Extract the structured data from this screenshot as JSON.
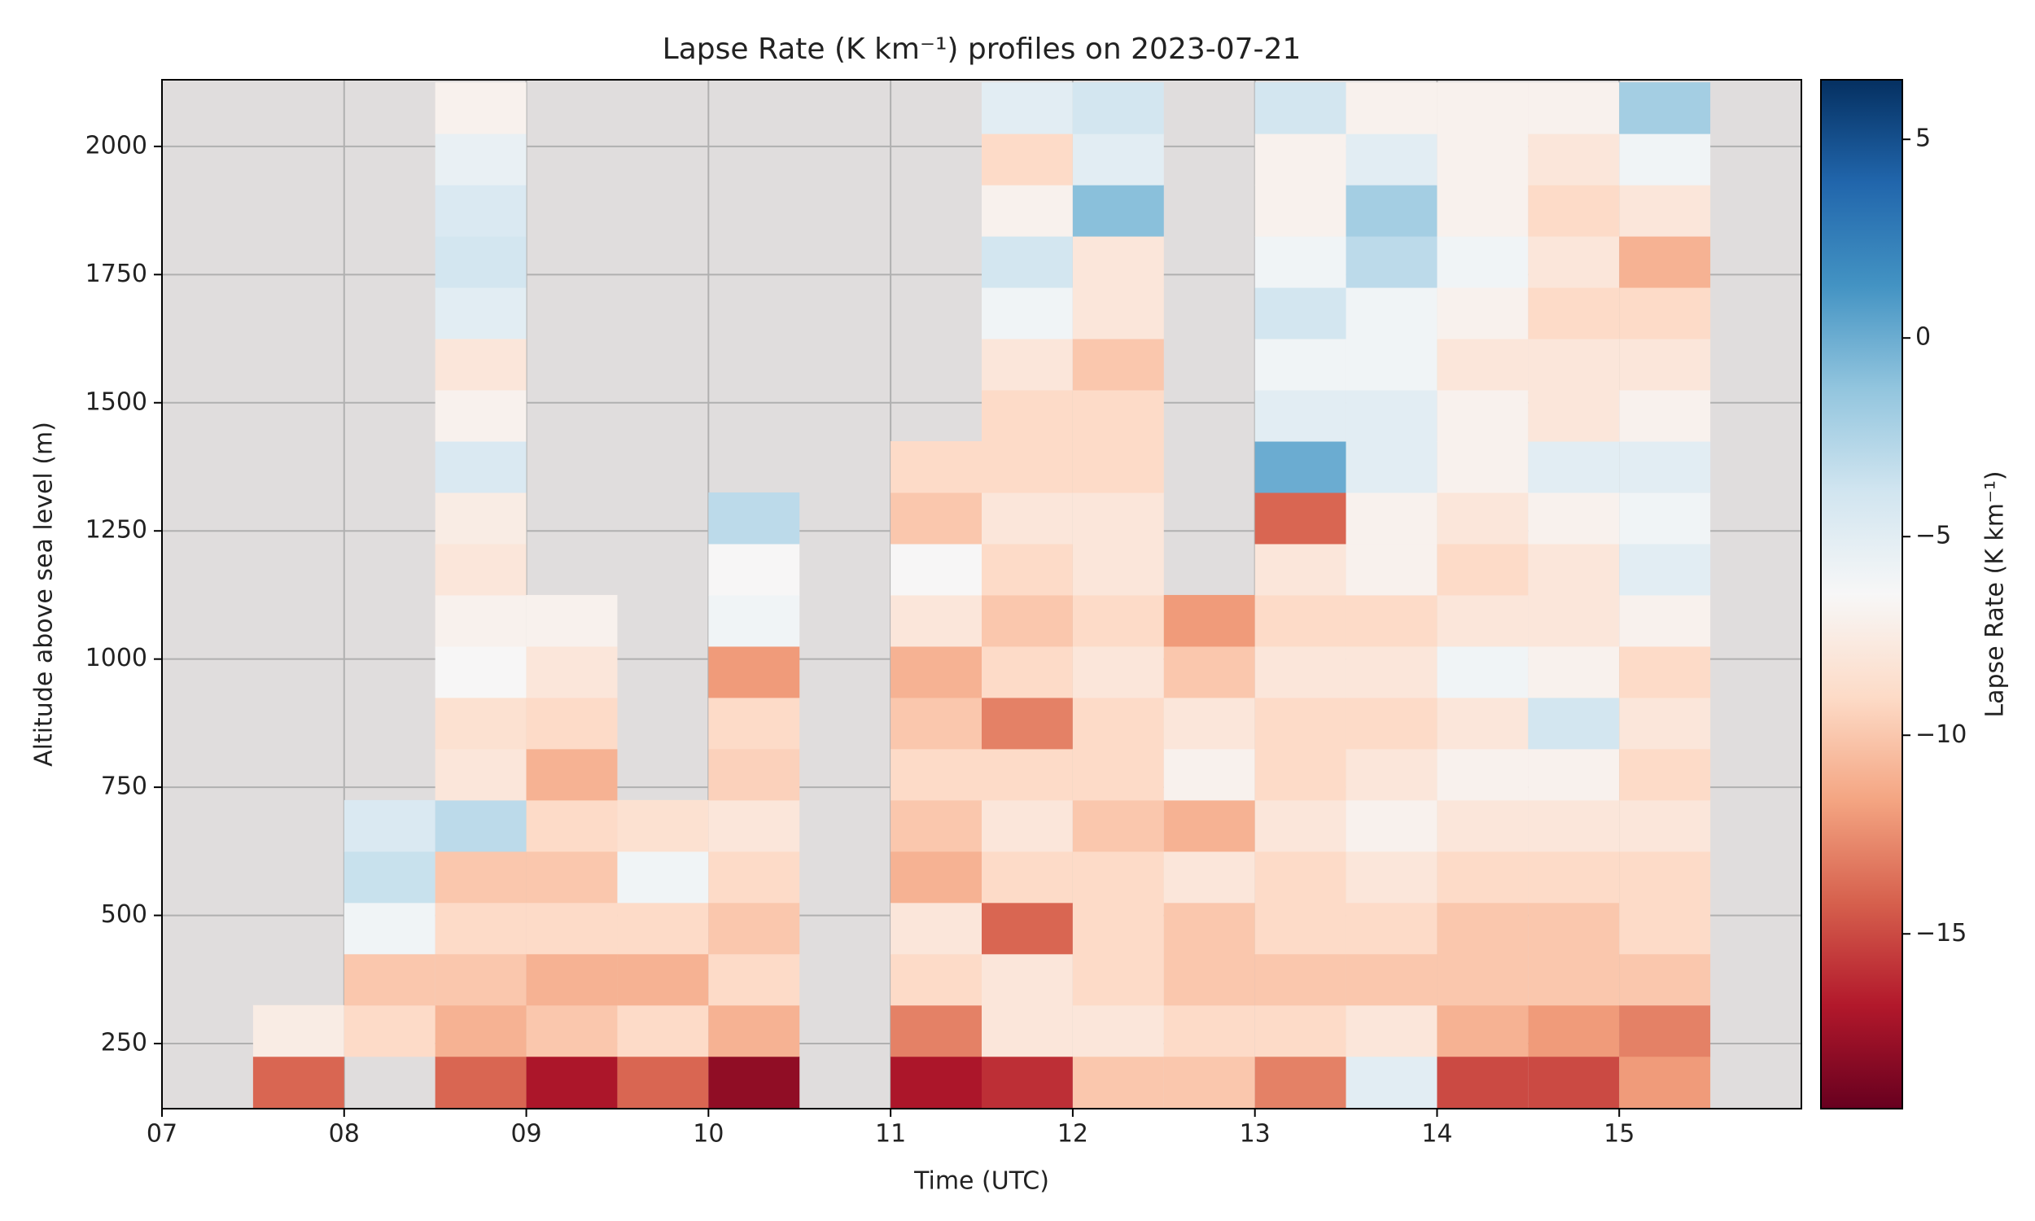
{
  "chart_data": {
    "type": "heatmap",
    "title": "Lapse Rate (K km⁻¹) profiles on 2023-07-21",
    "x_label": "Time (UTC)",
    "y_label": "Altitude above sea level (m)",
    "colorbar_label": "Lapse Rate (K km⁻¹)",
    "x_bins": [
      7.5,
      8,
      8.5,
      9,
      9.5,
      10,
      10.5,
      11,
      11.5,
      12,
      12.5,
      13,
      13.5,
      14,
      14.5,
      15,
      15.5
    ],
    "y_bins": [
      125,
      225,
      325,
      425,
      525,
      625,
      725,
      825,
      925,
      1025,
      1125,
      1225,
      1325,
      1425,
      1525,
      1625,
      1725,
      1825,
      1925,
      2025,
      2125
    ],
    "values": [
      [
        -14,
        -7.5,
        null,
        null,
        null,
        null,
        null,
        null,
        null,
        null,
        null,
        null,
        null,
        null,
        null,
        null,
        null,
        null,
        null,
        null
      ],
      [
        null,
        -9,
        -10,
        -6,
        -3.5,
        -4.5,
        null,
        null,
        null,
        null,
        null,
        null,
        null,
        null,
        null,
        null,
        null,
        null,
        null,
        null
      ],
      [
        -14,
        -11,
        -10,
        -9,
        -10,
        -3,
        -8,
        -8.5,
        -6.5,
        -7,
        -8,
        -7.5,
        -4.5,
        -7,
        -8,
        -5,
        -4,
        -4.5,
        -5.5,
        -7
      ],
      [
        -17,
        -10,
        -11,
        -9,
        -10,
        -9,
        -11,
        -9,
        -8,
        -7,
        null,
        null,
        null,
        null,
        null,
        null,
        null,
        null,
        null,
        null
      ],
      [
        -14,
        -9,
        -11,
        -9,
        -6,
        -8.5,
        null,
        null,
        null,
        null,
        null,
        null,
        null,
        null,
        null,
        null,
        null,
        null,
        null,
        null
      ],
      [
        -18,
        -11,
        -9,
        -10,
        -9,
        -8,
        -9.5,
        -9,
        -12,
        -6,
        -6.5,
        -3,
        null,
        null,
        null,
        null,
        null,
        null,
        null,
        null
      ],
      [
        null,
        null,
        null,
        null,
        null,
        null,
        null,
        null,
        null,
        null,
        null,
        null,
        null,
        null,
        null,
        null,
        null,
        null,
        null,
        null
      ],
      [
        -17,
        -13,
        -9,
        -8,
        -11,
        -10,
        -9,
        -10,
        -11,
        -8,
        -6.5,
        -10,
        -9,
        null,
        null,
        null,
        null,
        null,
        null,
        null
      ],
      [
        -16,
        -8,
        -8,
        -14,
        -9,
        -8,
        -9,
        -13,
        -9,
        -10,
        -9,
        -8,
        -9,
        -9,
        -8,
        -6,
        -4,
        -7,
        -9,
        -5
      ],
      [
        -10,
        -8,
        -9,
        -9,
        -9,
        -10,
        -9,
        -9,
        -8,
        -9,
        -8,
        -8,
        -9,
        -9,
        -10,
        -8,
        -8,
        -1,
        -5,
        -4
      ],
      [
        -10,
        -9,
        -10,
        -10,
        -8,
        -11,
        -7,
        -8,
        -10,
        -12,
        null,
        null,
        null,
        null,
        null,
        null,
        null,
        null,
        null,
        null
      ],
      [
        -13,
        -9,
        -10,
        -9,
        -9,
        -8,
        -9,
        -9,
        -8,
        -9,
        -8,
        -14,
        0,
        -5,
        -6,
        -4,
        -6,
        -7,
        -7,
        -4
      ],
      [
        -5,
        -8,
        -10,
        -9,
        -8,
        -7,
        -8,
        -9,
        -8,
        -9,
        -7,
        -7,
        -5,
        -5,
        -6,
        -6,
        -3,
        -2,
        -5,
        -7
      ],
      [
        -15,
        -11,
        -10,
        -10,
        -9,
        -8,
        -7,
        -8,
        -6,
        -8,
        -9,
        -8,
        -7,
        -7,
        -8,
        -7,
        -6,
        -7,
        -7,
        -7
      ],
      [
        -15,
        -12,
        -10,
        -10,
        -9,
        -8,
        -7,
        -4,
        -7,
        -8,
        -8,
        -7,
        -5,
        -8,
        -8,
        -9,
        -8,
        -9,
        -8,
        -7
      ],
      [
        -12,
        -13,
        -10,
        -9,
        -9,
        -8,
        -9,
        -8,
        -9,
        -7,
        -5,
        -6,
        -5,
        -7,
        -8,
        -9,
        -11,
        -8,
        -6,
        -2
      ]
    ],
    "xlim": [
      7,
      16
    ],
    "ylim": [
      123,
      2130
    ],
    "xticks": [
      {
        "value": 7,
        "label": "07"
      },
      {
        "value": 8,
        "label": "08"
      },
      {
        "value": 9,
        "label": "09"
      },
      {
        "value": 10,
        "label": "10"
      },
      {
        "value": 11,
        "label": "11"
      },
      {
        "value": 12,
        "label": "12"
      },
      {
        "value": 13,
        "label": "13"
      },
      {
        "value": 14,
        "label": "14"
      },
      {
        "value": 15,
        "label": "15"
      }
    ],
    "yticks": [
      250,
      500,
      750,
      1000,
      1250,
      1500,
      1750,
      2000
    ],
    "clim": [
      -19.4,
      6.5
    ],
    "cticks": [
      {
        "value": -15,
        "label": "−15"
      },
      {
        "value": -10,
        "label": "−10"
      },
      {
        "value": -5,
        "label": "−5"
      },
      0,
      5
    ],
    "colormap": [
      "#67001f",
      "#b2182b",
      "#d6604d",
      "#f4a582",
      "#fddbc7",
      "#f7f7f7",
      "#d1e5f0",
      "#92c5de",
      "#4393c3",
      "#2166ac",
      "#053061"
    ],
    "background": "#e0dddd",
    "grid": true
  }
}
